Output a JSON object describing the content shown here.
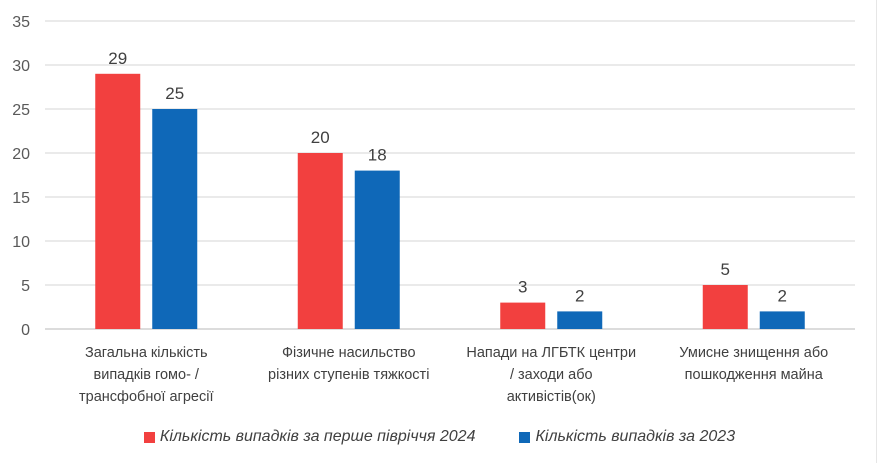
{
  "chart_data": {
    "type": "bar",
    "categories": [
      "Загальна кількість випадків гомо- / трансфобної агресії",
      "Фізичне насильство різних ступенів тяжкості",
      "Напади на ЛГБТК центри / заходи або активістів(ок)",
      "Умисне знищення або пошкодження майна"
    ],
    "category_lines": [
      [
        "Загальна кількість",
        "випадків гомо- /",
        "трансфобної агресії"
      ],
      [
        "Фізичне насильство",
        "різних ступенів тяжкості"
      ],
      [
        "Напади на ЛГБТК центри",
        "/ заходи або",
        "активістів(ок)"
      ],
      [
        "Умисне знищення або",
        "пошкодження майна"
      ]
    ],
    "series": [
      {
        "name": "Кількість випадків за перше півріччя 2024",
        "values": [
          29,
          20,
          3,
          5
        ],
        "color": "#f2403f"
      },
      {
        "name": "Кількість випадків за 2023",
        "values": [
          25,
          18,
          2,
          2
        ],
        "color": "#0f68b8"
      }
    ],
    "ylim": [
      0,
      35
    ],
    "yticks": [
      0,
      5,
      10,
      15,
      20,
      25,
      30,
      35
    ],
    "grid": true,
    "data_labels": true,
    "legend_position": "bottom",
    "title": "",
    "xlabel": "",
    "ylabel": ""
  }
}
